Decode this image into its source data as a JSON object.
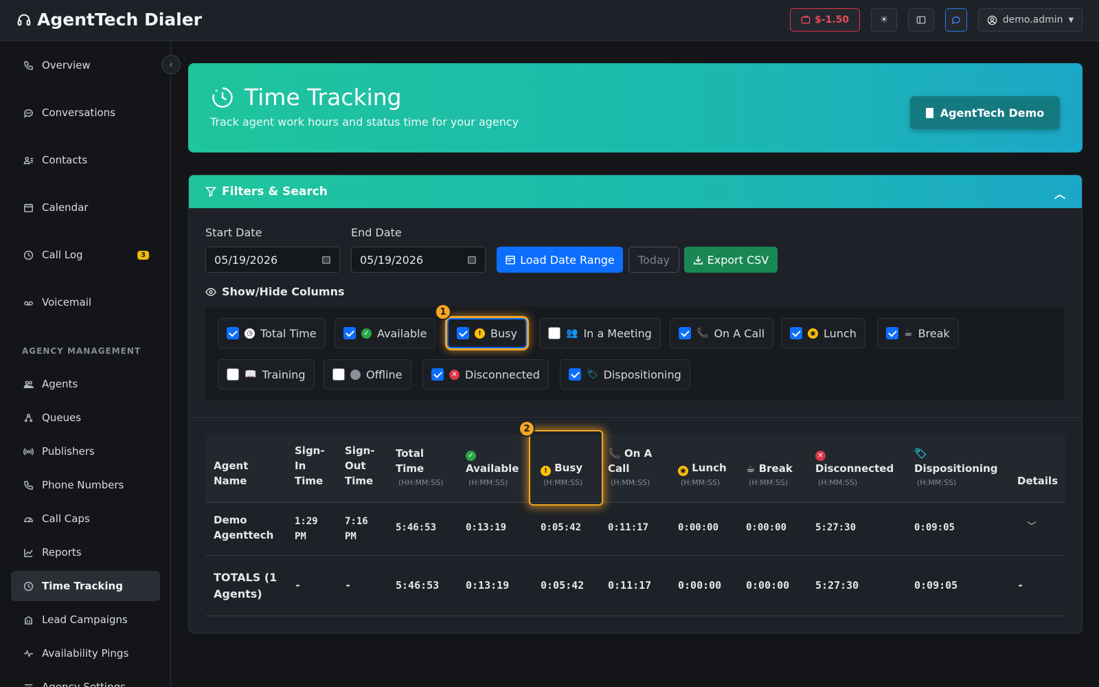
{
  "app": {
    "title": "AgentTech Dialer"
  },
  "topbar": {
    "balance": "$-1.50",
    "user": "demo.admin"
  },
  "sidebar": {
    "items": [
      {
        "label": "Overview"
      },
      {
        "label": "Conversations"
      },
      {
        "label": "Contacts"
      },
      {
        "label": "Calendar"
      },
      {
        "label": "Call Log",
        "badge": "3"
      },
      {
        "label": "Voicemail"
      }
    ],
    "section_label": "AGENCY MANAGEMENT",
    "agency_items": [
      {
        "label": "Agents"
      },
      {
        "label": "Queues"
      },
      {
        "label": "Publishers"
      },
      {
        "label": "Phone Numbers"
      },
      {
        "label": "Call Caps"
      },
      {
        "label": "Reports"
      },
      {
        "label": "Time Tracking"
      },
      {
        "label": "Lead Campaigns"
      },
      {
        "label": "Availability Pings"
      },
      {
        "label": "Agency Settings"
      }
    ]
  },
  "hero": {
    "title": "Time Tracking",
    "subtitle": "Track agent work hours and status time for your agency",
    "agency_button": "AgentTech Demo"
  },
  "filters": {
    "header": "Filters & Search",
    "start_label": "Start Date",
    "start_value": "05/19/2026",
    "end_label": "End Date",
    "end_value": "05/19/2026",
    "load_button": "Load Date Range",
    "today_button": "Today",
    "export_button": "Export CSV",
    "columns_label": "Show/Hide Columns",
    "columns": [
      {
        "label": "Total Time",
        "checked": true
      },
      {
        "label": "Available",
        "checked": true
      },
      {
        "label": "Busy",
        "checked": true
      },
      {
        "label": "In a Meeting",
        "checked": false
      },
      {
        "label": "On A Call",
        "checked": true
      },
      {
        "label": "Lunch",
        "checked": true
      },
      {
        "label": "Break",
        "checked": true
      },
      {
        "label": "Training",
        "checked": false
      },
      {
        "label": "Offline",
        "checked": false
      },
      {
        "label": "Disconnected",
        "checked": true
      },
      {
        "label": "Dispositioning",
        "checked": true
      }
    ]
  },
  "markers": {
    "m1": "1",
    "m2": "2"
  },
  "table": {
    "headers": {
      "agent_1": "Agent",
      "agent_2": "Name",
      "signin_1": "Sign-",
      "signin_2": "In",
      "signin_3": "Time",
      "signout_1": "Sign-",
      "signout_2": "Out",
      "signout_3": "Time",
      "total_1": "Total",
      "total_2": "Time",
      "available": "Available",
      "busy": "Busy",
      "oncall_1": "On A",
      "oncall_2": "Call",
      "lunch": "Lunch",
      "break": "Break",
      "disconnected": "Disconnected",
      "dispositioning": "Dispositioning",
      "details": "Details",
      "unit_hh": "(HH:MM:SS)",
      "unit_h": "(H:MM:SS)"
    },
    "row": {
      "name_1": "Demo",
      "name_2": "Agenttech",
      "signin_1": "1:29",
      "signin_2": "PM",
      "signout_1": "7:16",
      "signout_2": "PM",
      "total": "5:46:53",
      "available": "0:13:19",
      "busy": "0:05:42",
      "oncall": "0:11:17",
      "lunch": "0:00:00",
      "break": "0:00:00",
      "disconnected": "5:27:30",
      "dispositioning": "0:09:05"
    },
    "totals": {
      "label_1": "TOTALS (1",
      "label_2": "Agents)",
      "signin": "-",
      "signout": "-",
      "total": "5:46:53",
      "available": "0:13:19",
      "busy": "0:05:42",
      "oncall": "0:11:17",
      "lunch": "0:00:00",
      "break": "0:00:00",
      "disconnected": "5:27:30",
      "dispositioning": "0:09:05",
      "details": "-"
    }
  },
  "colors": {
    "accent": "#0d6efd",
    "teal": "#1fc59c",
    "highlight": "#f5a623",
    "danger": "#dc3545",
    "success": "#198754"
  }
}
